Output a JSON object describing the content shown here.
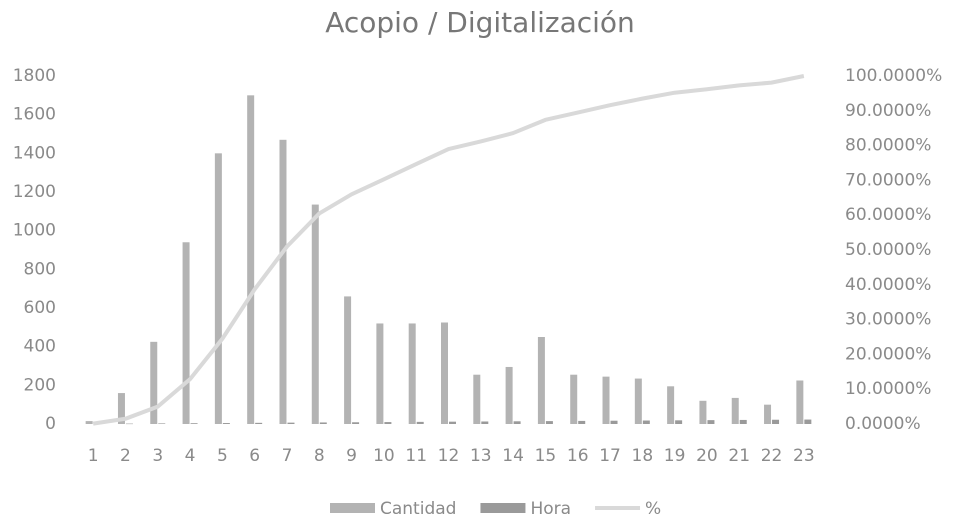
{
  "chart_data": {
    "type": "bar",
    "title": "Acopio / Digitalización",
    "categories": [
      "1",
      "2",
      "3",
      "4",
      "5",
      "6",
      "7",
      "8",
      "9",
      "10",
      "11",
      "12",
      "13",
      "14",
      "15",
      "16",
      "17",
      "18",
      "19",
      "20",
      "21",
      "22",
      "23"
    ],
    "series": [
      {
        "name": "Cantidad",
        "color": "#b3b3b3",
        "type": "bar",
        "values": [
          15,
          160,
          425,
          940,
          1400,
          1700,
          1470,
          1135,
          660,
          520,
          520,
          525,
          255,
          295,
          450,
          255,
          245,
          235,
          195,
          120,
          135,
          100,
          225
        ]
      },
      {
        "name": "Hora",
        "color": "#9a9a9a",
        "type": "bar",
        "values": [
          1,
          2,
          3,
          4,
          5,
          6,
          7,
          8,
          9,
          10,
          11,
          12,
          13,
          14,
          15,
          16,
          17,
          18,
          19,
          20,
          21,
          22,
          23
        ]
      },
      {
        "name": "%",
        "color": "#d9d9d9",
        "type": "line",
        "axis": "y2",
        "values": [
          0.1,
          1.5,
          5.0,
          12.9,
          24.5,
          38.7,
          51.0,
          60.5,
          66.0,
          70.3,
          74.7,
          79.0,
          81.2,
          83.6,
          87.4,
          89.5,
          91.6,
          93.5,
          95.2,
          96.2,
          97.3,
          98.1,
          100
        ]
      }
    ],
    "ylim": [
      0,
      1800
    ],
    "yticks": [
      0,
      200,
      400,
      600,
      800,
      1000,
      1200,
      1400,
      1600,
      1800
    ],
    "y2lim": [
      0,
      100
    ],
    "y2ticks": [
      {
        "value": 0,
        "label": "0.0000%"
      },
      {
        "value": 10,
        "label": "10.0000%"
      },
      {
        "value": 20,
        "label": "20.0000%"
      },
      {
        "value": 30,
        "label": "30.0000%"
      },
      {
        "value": 40,
        "label": "40.0000%"
      },
      {
        "value": 50,
        "label": "50.0000%"
      },
      {
        "value": 60,
        "label": "60.0000%"
      },
      {
        "value": 70,
        "label": "70.0000%"
      },
      {
        "value": 80,
        "label": "80.0000%"
      },
      {
        "value": 90,
        "label": "90.0000%"
      },
      {
        "value": 100,
        "label": "100.0000%"
      }
    ],
    "grid": false,
    "legend": "bottom"
  }
}
